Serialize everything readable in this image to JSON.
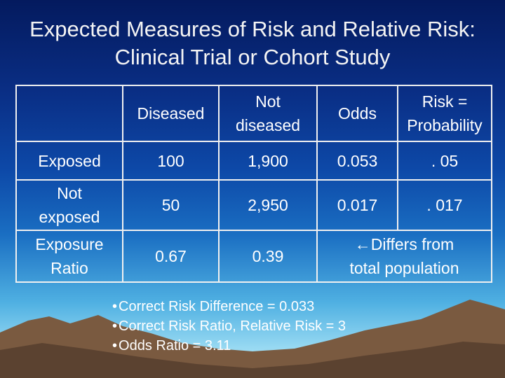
{
  "title": "Expected Measures of Risk and Relative Risk: Clinical Trial or Cohort Study",
  "table": {
    "header": {
      "blank": "",
      "diseased": "Diseased",
      "not_diseased_1": "Not",
      "not_diseased_2": "diseased",
      "odds": "Odds",
      "risk_1": "Risk =",
      "risk_2": "Probability"
    },
    "rows": [
      {
        "label": "Exposed",
        "diseased": "100",
        "not_diseased": "1,900",
        "odds": "0.053",
        "risk": ". 05"
      },
      {
        "label_1": "Not",
        "label_2": "exposed",
        "diseased": "50",
        "not_diseased": "2,950",
        "odds": "0.017",
        "risk": ". 017"
      },
      {
        "label_1": "Exposure",
        "label_2": "Ratio",
        "diseased": "0.67",
        "not_diseased": "0.39",
        "note_1": "Differs from",
        "note_2": "total population"
      }
    ]
  },
  "bullets": [
    "Correct Risk Difference = 0.033",
    "Correct Risk Ratio, Relative Risk = 3",
    "Odds Ratio = 3.11"
  ],
  "icons": {
    "note_arrow": "left-arrow-icon"
  },
  "colors": {
    "background_top": "#041a5e",
    "background_bottom": "#a9e3f6",
    "mountain": "#6b4f3a",
    "text": "#ffffff"
  }
}
